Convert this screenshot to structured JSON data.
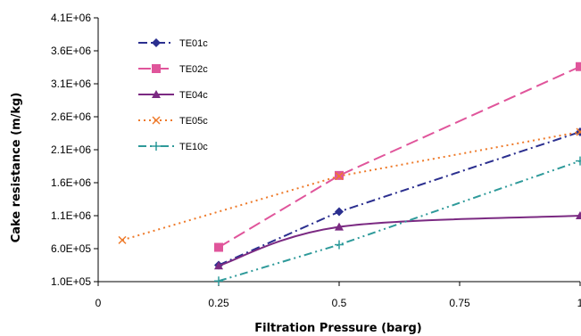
{
  "chart_data": {
    "type": "line",
    "xlabel": "Filtration Pressure (barg)",
    "ylabel": "Cake resistance (m/kg)",
    "xlim": [
      0,
      1
    ],
    "ylim": [
      100000,
      4100000
    ],
    "x_ticks": [
      {
        "value": 0,
        "label": "0"
      },
      {
        "value": 0.25,
        "label": "0.25"
      },
      {
        "value": 0.5,
        "label": "0.5"
      },
      {
        "value": 0.75,
        "label": "0.75"
      },
      {
        "value": 1,
        "label": "1"
      }
    ],
    "y_ticks": [
      {
        "value": 100000,
        "label": "1.0E+05"
      },
      {
        "value": 600000,
        "label": "6.0E+05"
      },
      {
        "value": 1100000,
        "label": "1.1E+06"
      },
      {
        "value": 1600000,
        "label": "1.6E+06"
      },
      {
        "value": 2100000,
        "label": "2.1E+06"
      },
      {
        "value": 2600000,
        "label": "2.6E+06"
      },
      {
        "value": 3100000,
        "label": "3.1E+06"
      },
      {
        "value": 3600000,
        "label": "3.6E+06"
      },
      {
        "value": 4100000,
        "label": "4.1E+06"
      }
    ],
    "grid": false,
    "legend_position": "top-left",
    "series": [
      {
        "name": "TE01c",
        "color": "#2b2f8f",
        "dash": "dash-dot",
        "marker": "diamond",
        "smooth": false,
        "x": [
          0.25,
          0.5,
          1
        ],
        "y": [
          350000,
          1160000,
          2370000
        ]
      },
      {
        "name": "TE02c",
        "color": "#e0559b",
        "dash": "long-dash",
        "marker": "square",
        "smooth": false,
        "x": [
          0.25,
          0.5,
          1
        ],
        "y": [
          620000,
          1710000,
          3360000
        ]
      },
      {
        "name": "TE04c",
        "color": "#7b2a82",
        "dash": "solid",
        "marker": "triangle",
        "smooth": true,
        "x": [
          0.25,
          0.5,
          1
        ],
        "y": [
          340000,
          930000,
          1100000
        ]
      },
      {
        "name": "TE05c",
        "color": "#ee7a2a",
        "dash": "dotted",
        "marker": "x",
        "smooth": false,
        "x": [
          0.05,
          0.5,
          1
        ],
        "y": [
          730000,
          1700000,
          2370000
        ]
      },
      {
        "name": "TE10c",
        "color": "#2e9a9a",
        "dash": "dash-dot-dot",
        "marker": "plus",
        "smooth": false,
        "x": [
          0.25,
          0.5,
          1
        ],
        "y": [
          110000,
          660000,
          1930000
        ]
      }
    ]
  }
}
